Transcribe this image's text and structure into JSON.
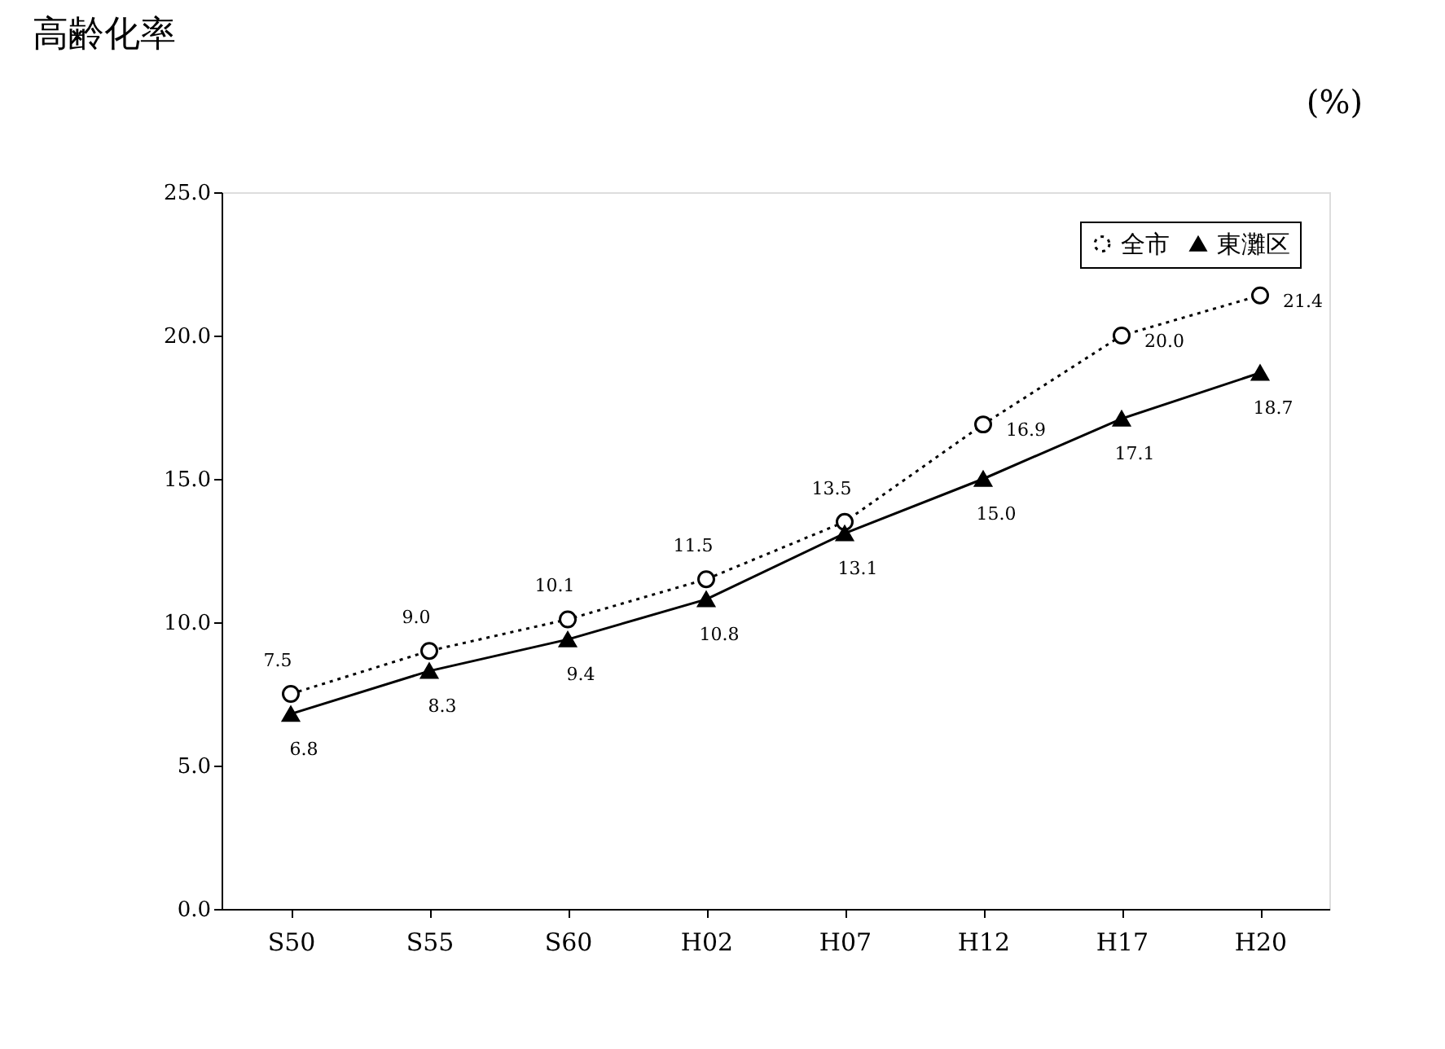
{
  "chart_data": {
    "type": "line",
    "title": "高齢化率",
    "ylabel": "(%)",
    "categories": [
      "S50",
      "S55",
      "S60",
      "H02",
      "H07",
      "H12",
      "H17",
      "H20"
    ],
    "series": [
      {
        "name": "全市",
        "color": "#000000",
        "marker": "circle",
        "line_style": "dotted",
        "values": [
          7.5,
          9.0,
          10.1,
          11.5,
          13.5,
          16.9,
          20.0,
          21.4
        ],
        "value_labels": [
          "7.5",
          "9.0",
          "10.1",
          "11.5",
          "13.5",
          "16.9",
          "20.0",
          "21.4"
        ]
      },
      {
        "name": "東灘区",
        "color": "#000000",
        "marker": "triangle",
        "line_style": "solid",
        "values": [
          6.8,
          8.3,
          9.4,
          10.8,
          13.1,
          15.0,
          17.1,
          18.7
        ],
        "value_labels": [
          "6.8",
          "8.3",
          "9.4",
          "10.8",
          "13.1",
          "15.0",
          "17.1",
          "18.7"
        ]
      }
    ],
    "ylim": [
      0,
      25
    ],
    "yticks": [
      {
        "value": 0,
        "label": "0.0"
      },
      {
        "value": 5,
        "label": "5.0"
      },
      {
        "value": 10,
        "label": "10.0"
      },
      {
        "value": 15,
        "label": "15.0"
      },
      {
        "value": 20,
        "label": "20.0"
      },
      {
        "value": 25,
        "label": "25.0"
      }
    ],
    "grid": false,
    "legend": "top right"
  }
}
